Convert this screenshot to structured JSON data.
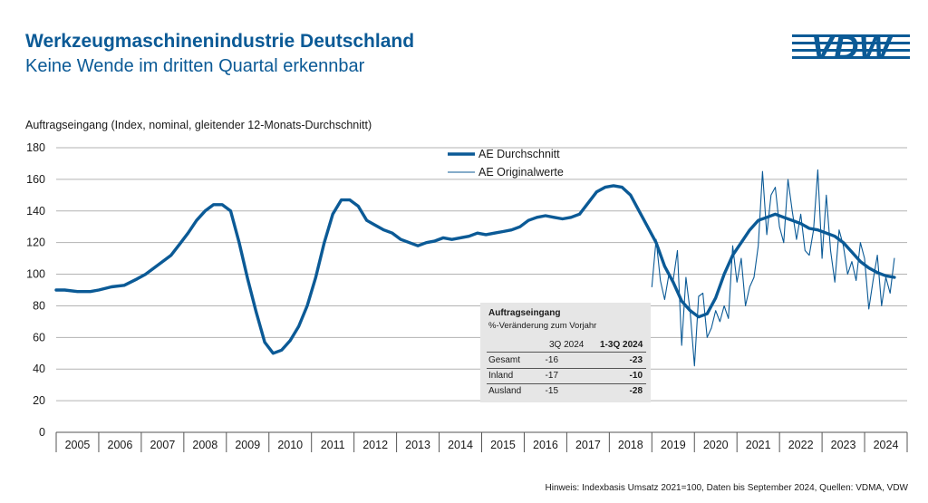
{
  "header": {
    "title": "Werkzeugmaschinenindustrie Deutschland",
    "subtitle": "Keine Wende im dritten Quartal erkennbar",
    "logo_text": "VDW"
  },
  "footnote": "Hinweis: Indexbasis Umsatz 2021=100, Daten bis September 2024, Quellen: VDMA, VDW",
  "colors": {
    "brand": "#0b5a96",
    "grid": "#b3b3b3",
    "table_bg": "#e6e6e6"
  },
  "chart_data": {
    "type": "line",
    "ylabel": "Auftragseingang (Index, nominal, gleitender 12-Monats-Durchschnitt)",
    "ylim": [
      0,
      180
    ],
    "yticks": [
      0,
      20,
      40,
      60,
      80,
      100,
      120,
      140,
      160,
      180
    ],
    "xlim": [
      2005.0,
      2025.0
    ],
    "year_labels": [
      "2005",
      "2006",
      "2007",
      "2008",
      "2009",
      "2010",
      "2011",
      "2012",
      "2013",
      "2014",
      "2015",
      "2016",
      "2017",
      "2018",
      "2019",
      "2020",
      "2021",
      "2022",
      "2023",
      "2024"
    ],
    "grid": "horizontal",
    "legend": "top-center",
    "series": [
      {
        "name": "AE Durchschnitt",
        "style": "thick",
        "x": [
          2005.0,
          2005.2,
          2005.5,
          2005.8,
          2006.0,
          2006.3,
          2006.6,
          2006.9,
          2007.1,
          2007.4,
          2007.7,
          2007.9,
          2008.1,
          2008.3,
          2008.5,
          2008.7,
          2008.9,
          2009.1,
          2009.3,
          2009.5,
          2009.7,
          2009.9,
          2010.1,
          2010.3,
          2010.5,
          2010.7,
          2010.9,
          2011.1,
          2011.3,
          2011.5,
          2011.7,
          2011.9,
          2012.1,
          2012.3,
          2012.5,
          2012.7,
          2012.9,
          2013.1,
          2013.3,
          2013.5,
          2013.7,
          2013.9,
          2014.1,
          2014.3,
          2014.5,
          2014.7,
          2014.9,
          2015.1,
          2015.3,
          2015.5,
          2015.7,
          2015.9,
          2016.1,
          2016.3,
          2016.5,
          2016.7,
          2016.9,
          2017.1,
          2017.3,
          2017.5,
          2017.7,
          2017.9,
          2018.1,
          2018.3,
          2018.5,
          2018.7,
          2018.9,
          2019.1,
          2019.3,
          2019.5,
          2019.7,
          2019.9,
          2020.1,
          2020.3,
          2020.5,
          2020.7,
          2020.9,
          2021.1,
          2021.3,
          2021.5,
          2021.7,
          2021.9,
          2022.1,
          2022.3,
          2022.5,
          2022.7,
          2022.9,
          2023.1,
          2023.3,
          2023.5,
          2023.7,
          2023.9,
          2024.1,
          2024.3,
          2024.5,
          2024.7
        ],
        "values": [
          90,
          90,
          89,
          89,
          90,
          92,
          93,
          97,
          100,
          106,
          112,
          119,
          126,
          134,
          140,
          144,
          144,
          140,
          120,
          97,
          76,
          57,
          50,
          52,
          58,
          67,
          80,
          98,
          120,
          138,
          147,
          147,
          143,
          134,
          131,
          128,
          126,
          122,
          120,
          118,
          120,
          121,
          123,
          122,
          123,
          124,
          126,
          125,
          126,
          127,
          128,
          130,
          134,
          136,
          137,
          136,
          135,
          136,
          138,
          145,
          152,
          155,
          156,
          155,
          150,
          140,
          130,
          120,
          105,
          95,
          83,
          77,
          73,
          75,
          85,
          100,
          112,
          120,
          128,
          134,
          136,
          138,
          136,
          134,
          132,
          129,
          128,
          126,
          124,
          120,
          114,
          108,
          104,
          101,
          99,
          98
        ]
      },
      {
        "name": "AE Originalwerte",
        "style": "thin",
        "x": [
          2019.0,
          2019.1,
          2019.2,
          2019.3,
          2019.4,
          2019.5,
          2019.6,
          2019.7,
          2019.8,
          2019.9,
          2020.0,
          2020.1,
          2020.2,
          2020.3,
          2020.4,
          2020.5,
          2020.6,
          2020.7,
          2020.8,
          2020.9,
          2021.0,
          2021.1,
          2021.2,
          2021.3,
          2021.4,
          2021.5,
          2021.6,
          2021.7,
          2021.8,
          2021.9,
          2022.0,
          2022.1,
          2022.2,
          2022.3,
          2022.4,
          2022.5,
          2022.6,
          2022.7,
          2022.8,
          2022.9,
          2023.0,
          2023.1,
          2023.2,
          2023.3,
          2023.4,
          2023.5,
          2023.6,
          2023.7,
          2023.8,
          2023.9,
          2024.0,
          2024.1,
          2024.2,
          2024.3,
          2024.4,
          2024.5,
          2024.6,
          2024.7
        ],
        "values": [
          92,
          122,
          96,
          84,
          100,
          96,
          115,
          55,
          98,
          76,
          42,
          86,
          88,
          60,
          66,
          77,
          70,
          80,
          72,
          118,
          95,
          110,
          80,
          92,
          98,
          118,
          165,
          125,
          150,
          155,
          130,
          120,
          160,
          140,
          122,
          138,
          115,
          112,
          128,
          166,
          110,
          150,
          115,
          95,
          128,
          118,
          100,
          108,
          96,
          120,
          110,
          78,
          96,
          112,
          80,
          98,
          88,
          110
        ]
      }
    ],
    "table": {
      "title": "Auftragseingang",
      "subtitle": "%-Veränderung zum Vorjahr",
      "columns": [
        "3Q 2024",
        "1-3Q 2024"
      ],
      "rows": [
        {
          "label": "Gesamt",
          "values": [
            "-16",
            "-23"
          ]
        },
        {
          "label": "Inland",
          "values": [
            "-17",
            "-10"
          ]
        },
        {
          "label": "Ausland",
          "values": [
            "-15",
            "-28"
          ]
        }
      ]
    }
  }
}
